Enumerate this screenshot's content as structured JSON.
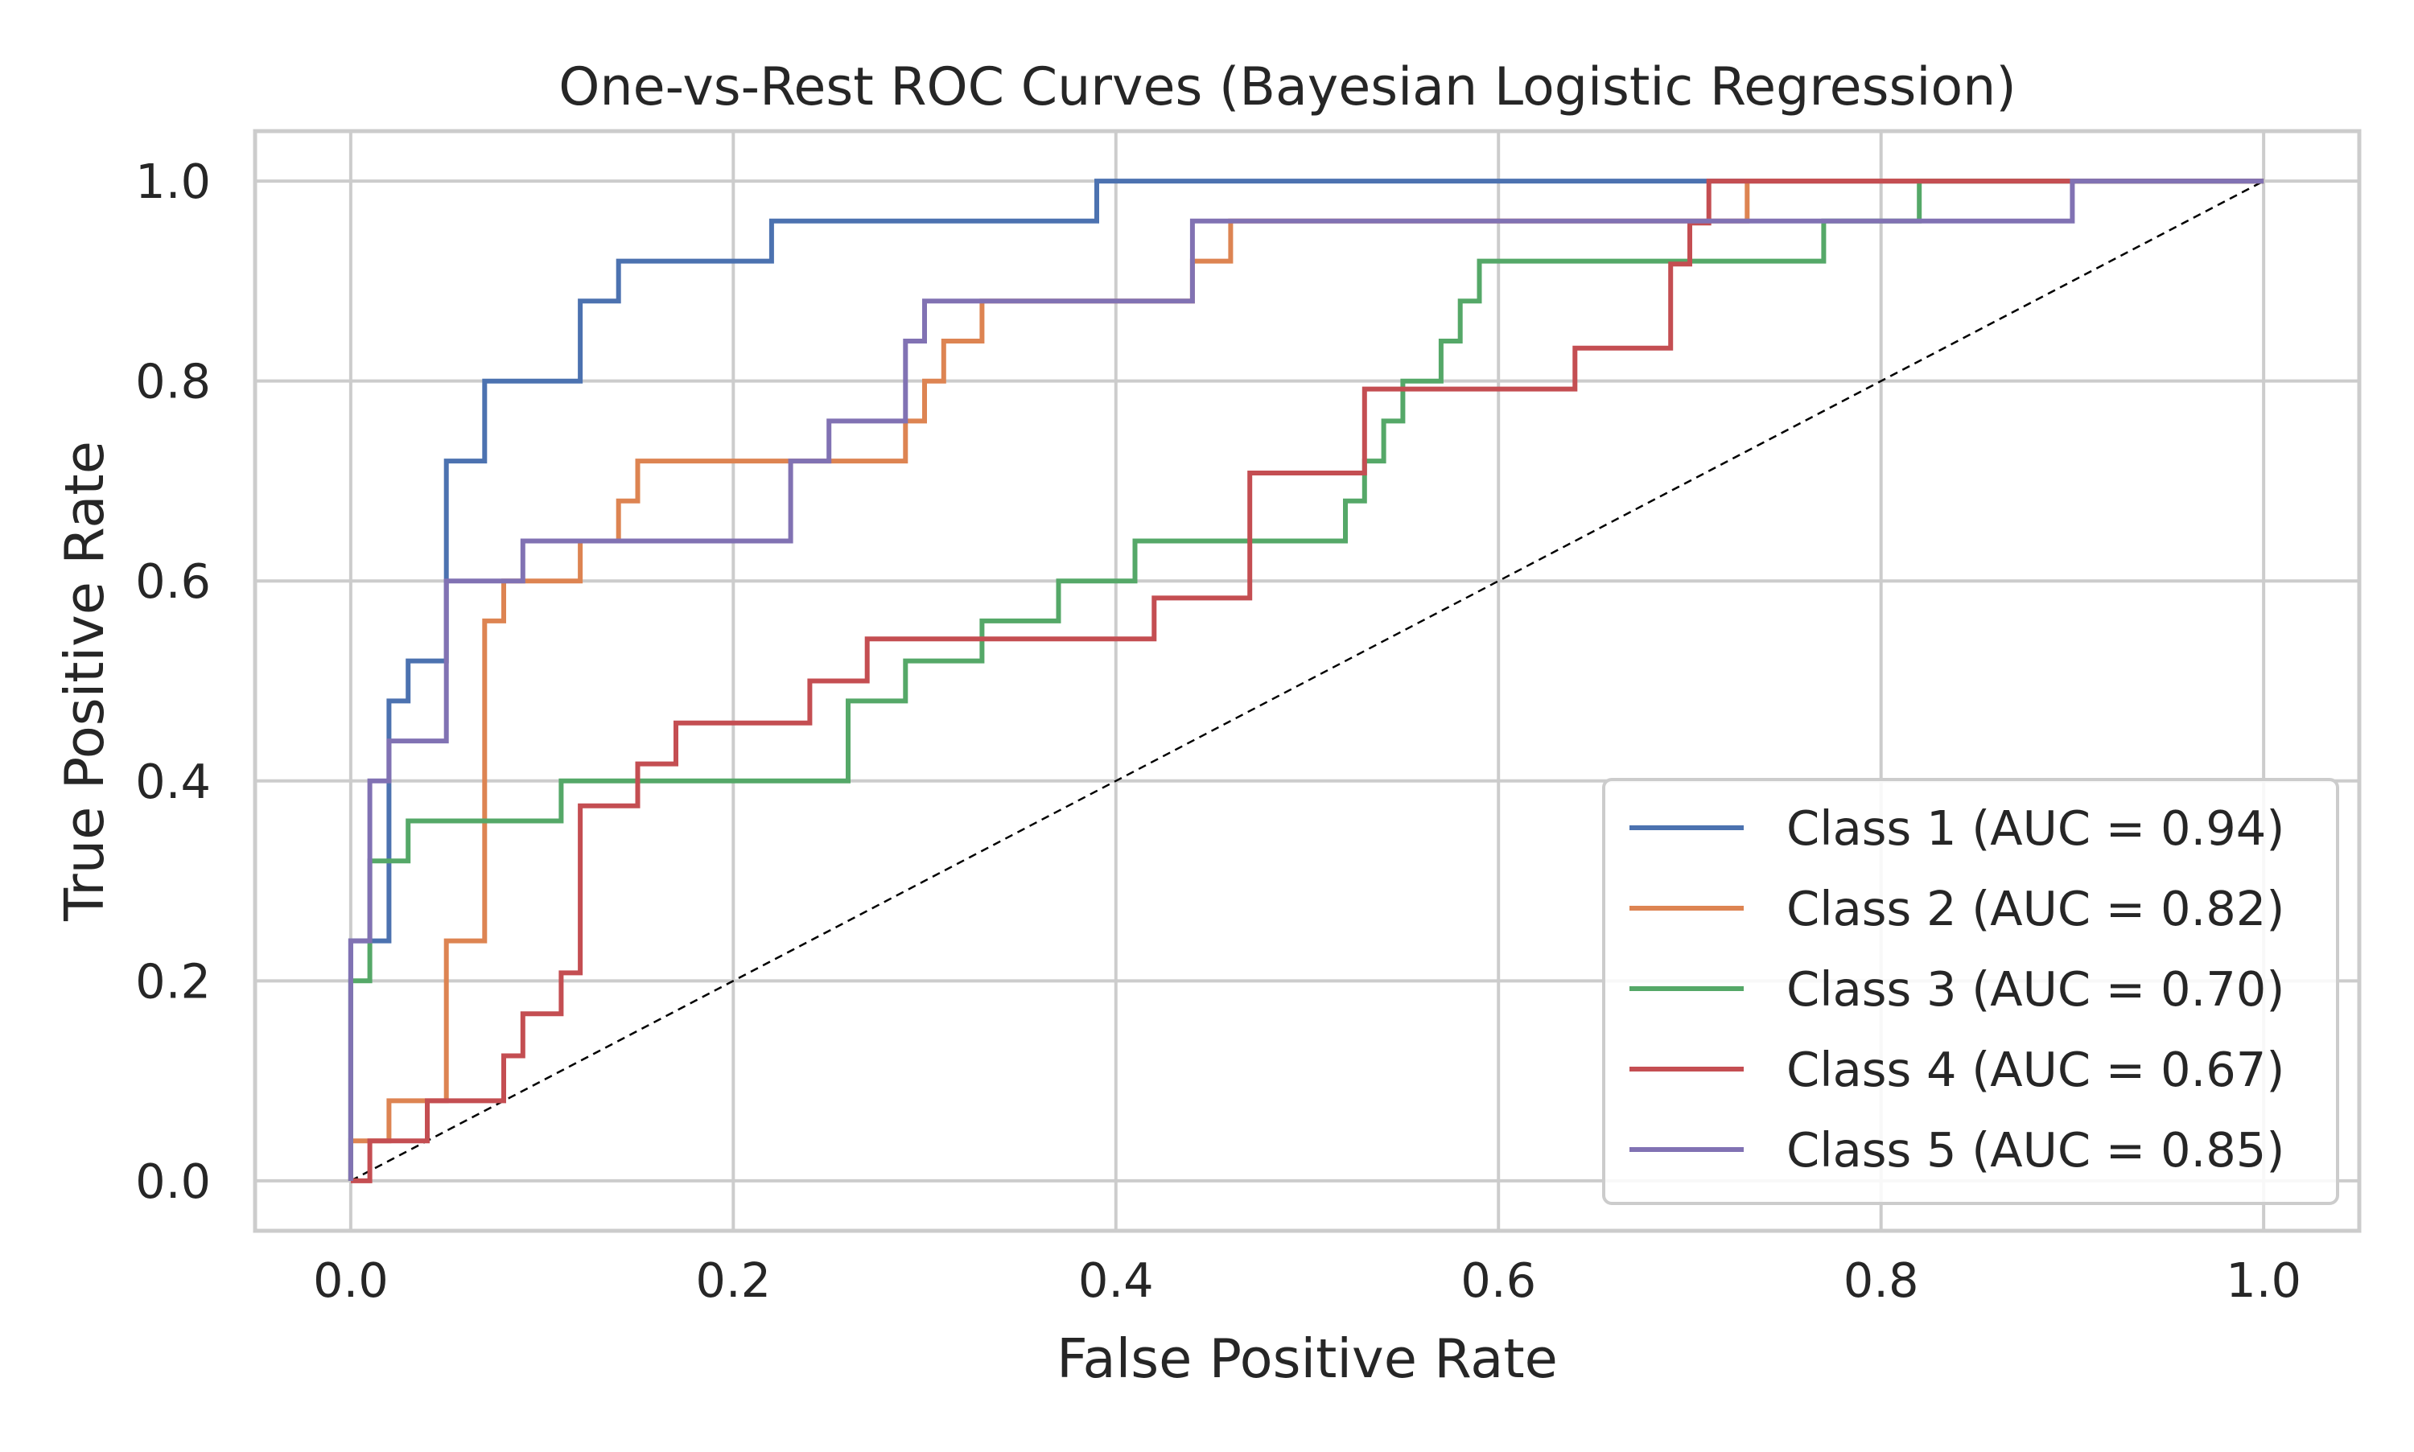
{
  "chart_data": {
    "type": "line",
    "title": "One-vs-Rest ROC Curves (Bayesian Logistic Regression)",
    "xlabel": "False Positive Rate",
    "ylabel": "True Positive Rate",
    "xlim": [
      -0.05,
      1.05
    ],
    "ylim": [
      -0.05,
      1.05
    ],
    "xticks": [
      0.0,
      0.2,
      0.4,
      0.6,
      0.8,
      1.0
    ],
    "yticks": [
      0.0,
      0.2,
      0.4,
      0.6,
      0.8,
      1.0
    ],
    "tick_labels_x": [
      "0.0",
      "0.2",
      "0.4",
      "0.6",
      "0.8",
      "1.0"
    ],
    "tick_labels_y": [
      "0.0",
      "0.2",
      "0.4",
      "0.6",
      "0.8",
      "1.0"
    ],
    "grid": true,
    "legend_position": "lower-right",
    "chance_line": {
      "x": [
        0,
        1
      ],
      "y": [
        0,
        1
      ],
      "color": "#000000",
      "style": "dashed"
    },
    "series": [
      {
        "name": "Class 1 (AUC = 0.94)",
        "color": "#4c72b0",
        "x": [
          0,
          0,
          0.01,
          0.01,
          0.02,
          0.02,
          0.03,
          0.03,
          0.05,
          0.05,
          0.07,
          0.07,
          0.12,
          0.12,
          0.14,
          0.14,
          0.22,
          0.22,
          0.39,
          0.39,
          1.0
        ],
        "y": [
          0,
          0.24,
          0.24,
          0.24,
          0.24,
          0.48,
          0.48,
          0.52,
          0.52,
          0.72,
          0.72,
          0.8,
          0.8,
          0.88,
          0.88,
          0.92,
          0.92,
          0.96,
          0.96,
          1.0,
          1.0
        ]
      },
      {
        "name": "Class 2 (AUC = 0.82)",
        "color": "#dd8452",
        "x": [
          0,
          0,
          0.02,
          0.02,
          0.05,
          0.05,
          0.07,
          0.07,
          0.08,
          0.08,
          0.12,
          0.12,
          0.14,
          0.14,
          0.15,
          0.15,
          0.29,
          0.29,
          0.3,
          0.3,
          0.31,
          0.31,
          0.33,
          0.33,
          0.44,
          0.44,
          0.46,
          0.46,
          0.72,
          0.72,
          0.73,
          0.73,
          1.0
        ],
        "y": [
          0,
          0.04,
          0.04,
          0.08,
          0.08,
          0.24,
          0.24,
          0.56,
          0.56,
          0.6,
          0.6,
          0.64,
          0.64,
          0.68,
          0.68,
          0.72,
          0.72,
          0.76,
          0.76,
          0.8,
          0.8,
          0.84,
          0.84,
          0.88,
          0.88,
          0.92,
          0.92,
          0.96,
          0.96,
          0.96,
          0.96,
          1.0,
          1.0
        ]
      },
      {
        "name": "Class 3 (AUC = 0.70)",
        "color": "#55a868",
        "x": [
          0,
          0,
          0.01,
          0.01,
          0.03,
          0.03,
          0.11,
          0.11,
          0.26,
          0.26,
          0.29,
          0.29,
          0.33,
          0.33,
          0.37,
          0.37,
          0.41,
          0.41,
          0.52,
          0.52,
          0.53,
          0.53,
          0.54,
          0.54,
          0.55,
          0.55,
          0.57,
          0.57,
          0.58,
          0.58,
          0.59,
          0.59,
          0.77,
          0.77,
          0.82,
          0.82,
          1.0
        ],
        "y": [
          0,
          0.2,
          0.2,
          0.32,
          0.32,
          0.36,
          0.36,
          0.4,
          0.4,
          0.48,
          0.48,
          0.52,
          0.52,
          0.56,
          0.56,
          0.6,
          0.6,
          0.64,
          0.64,
          0.68,
          0.68,
          0.72,
          0.72,
          0.76,
          0.76,
          0.8,
          0.8,
          0.84,
          0.84,
          0.88,
          0.88,
          0.92,
          0.92,
          0.96,
          0.96,
          1.0,
          1.0
        ]
      },
      {
        "name": "Class 4 (AUC = 0.67)",
        "color": "#c44e52",
        "x": [
          0,
          0.01,
          0.01,
          0.04,
          0.04,
          0.08,
          0.08,
          0.09,
          0.09,
          0.11,
          0.11,
          0.12,
          0.12,
          0.15,
          0.15,
          0.17,
          0.17,
          0.24,
          0.24,
          0.27,
          0.27,
          0.42,
          0.42,
          0.47,
          0.47,
          0.53,
          0.53,
          0.64,
          0.64,
          0.69,
          0.69,
          0.7,
          0.7,
          0.71,
          0.71,
          1.0
        ],
        "y": [
          0,
          0,
          0.04,
          0.04,
          0.08,
          0.08,
          0.125,
          0.125,
          0.167,
          0.167,
          0.208,
          0.208,
          0.375,
          0.375,
          0.417,
          0.417,
          0.458,
          0.458,
          0.5,
          0.5,
          0.542,
          0.542,
          0.583,
          0.583,
          0.708,
          0.708,
          0.792,
          0.792,
          0.833,
          0.833,
          0.917,
          0.917,
          0.958,
          0.958,
          1.0,
          1.0
        ]
      },
      {
        "name": "Class 5 (AUC = 0.85)",
        "color": "#8172b3",
        "x": [
          0,
          0,
          0.01,
          0.01,
          0.02,
          0.02,
          0.05,
          0.05,
          0.09,
          0.09,
          0.23,
          0.23,
          0.25,
          0.25,
          0.29,
          0.29,
          0.3,
          0.3,
          0.44,
          0.44,
          0.9,
          0.9,
          1.0
        ],
        "y": [
          0,
          0.24,
          0.24,
          0.4,
          0.4,
          0.44,
          0.44,
          0.6,
          0.6,
          0.64,
          0.64,
          0.72,
          0.72,
          0.76,
          0.76,
          0.84,
          0.84,
          0.88,
          0.88,
          0.96,
          0.96,
          1.0,
          1.0
        ]
      }
    ]
  }
}
